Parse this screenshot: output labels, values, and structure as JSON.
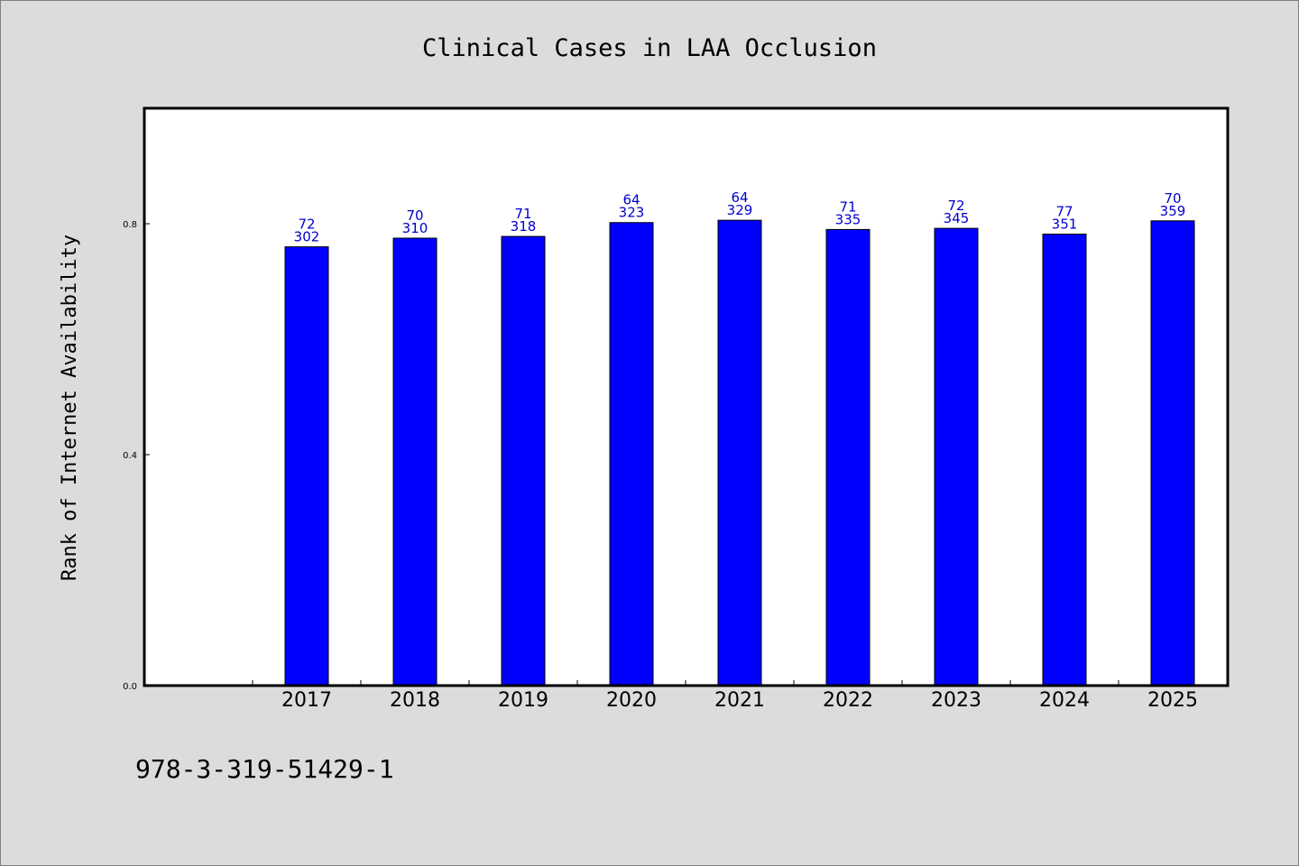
{
  "chart_data": {
    "type": "bar",
    "title": "Clinical Cases in LAA Occlusion",
    "xlabel": "",
    "ylabel": "Rank of Internet Availability",
    "categories": [
      "2017",
      "2018",
      "2019",
      "2020",
      "2021",
      "2022",
      "2023",
      "2024",
      "2025"
    ],
    "values": [
      0.76,
      0.775,
      0.778,
      0.802,
      0.806,
      0.79,
      0.792,
      0.782,
      0.805
    ],
    "label_top": [
      "72",
      "70",
      "71",
      "64",
      "64",
      "71",
      "72",
      "77",
      "70"
    ],
    "label_bottom": [
      "302",
      "310",
      "318",
      "323",
      "329",
      "335",
      "345",
      "351",
      "359"
    ],
    "yticks": [
      "0.0",
      "0.4",
      "0.8"
    ],
    "ylim": [
      0,
      1.0
    ],
    "grid": false,
    "legend": "none",
    "colors": {
      "bar": "#0000ff",
      "data_label": "#0000cc",
      "background": "#dcdcdc",
      "plot_bg": "#ffffff"
    }
  },
  "footnote": "978-3-319-51429-1"
}
